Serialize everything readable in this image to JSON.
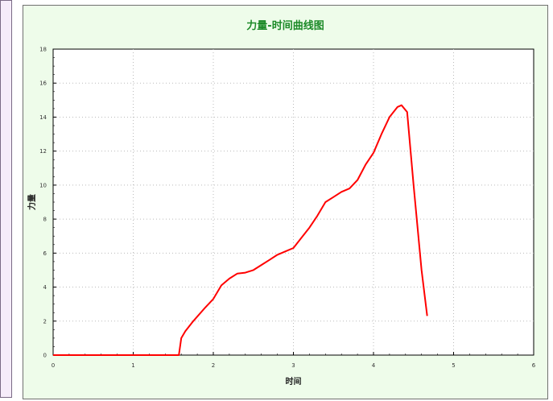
{
  "chart_data": {
    "type": "line",
    "title": "力量-时间曲线图",
    "xlabel": "时间",
    "ylabel": "力量",
    "xlim": [
      0,
      6
    ],
    "ylim": [
      0,
      18
    ],
    "xticks": [
      0,
      1,
      2,
      3,
      4,
      5,
      6
    ],
    "yticks": [
      0,
      2,
      4,
      6,
      8,
      10,
      12,
      14,
      16,
      18
    ],
    "grid": true,
    "line_color": "#ff0000",
    "series": [
      {
        "x": [
          0,
          0.5,
          1.0,
          1.5,
          1.57,
          1.6,
          1.65,
          1.75,
          1.9,
          2.0,
          2.1,
          2.2,
          2.3,
          2.4,
          2.5,
          2.6,
          2.7,
          2.8,
          2.9,
          3.0,
          3.1,
          3.2,
          3.3,
          3.4,
          3.5,
          3.6,
          3.7,
          3.8,
          3.9,
          4.0,
          4.1,
          4.2,
          4.3,
          4.35,
          4.42,
          4.5,
          4.6,
          4.67
        ],
        "y": [
          0,
          0,
          0,
          0,
          0,
          1.0,
          1.4,
          2.0,
          2.8,
          3.3,
          4.1,
          4.5,
          4.8,
          4.85,
          5.0,
          5.3,
          5.6,
          5.9,
          6.1,
          6.3,
          6.9,
          7.5,
          8.2,
          9.0,
          9.3,
          9.6,
          9.8,
          10.3,
          11.2,
          11.9,
          13.0,
          14.0,
          14.6,
          14.7,
          14.3,
          10.0,
          5.0,
          2.3
        ]
      }
    ]
  }
}
